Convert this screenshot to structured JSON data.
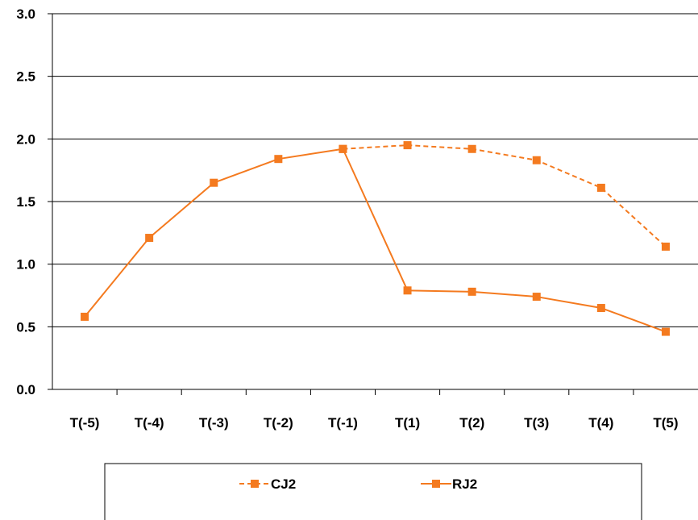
{
  "chart_data": {
    "type": "line",
    "title": "",
    "xlabel": "",
    "ylabel": "",
    "categories": [
      "T(-5)",
      "T(-4)",
      "T(-3)",
      "T(-2)",
      "T(-1)",
      "T(1)",
      "T(2)",
      "T(3)",
      "T(4)",
      "T(5)"
    ],
    "ylim": [
      0,
      3.0
    ],
    "yticks": [
      0,
      0.5,
      1.0,
      1.5,
      2.0,
      2.5,
      3.0
    ],
    "ytick_labels": [
      "0.0",
      "0.5",
      "1.0",
      "1.5",
      "2.0",
      "2.5",
      "3.0"
    ],
    "grid": "horizontal",
    "legend": "bottom",
    "series": [
      {
        "name": "CJ2",
        "style": "dashed",
        "marker": "square",
        "color": "#f47a1f",
        "values": [
          null,
          null,
          null,
          null,
          1.92,
          1.95,
          1.92,
          1.83,
          1.61,
          1.14
        ]
      },
      {
        "name": "RJ2",
        "style": "solid",
        "marker": "square",
        "color": "#f47a1f",
        "values": [
          0.58,
          1.21,
          1.65,
          1.84,
          1.92,
          0.79,
          0.78,
          0.74,
          0.65,
          0.46
        ]
      }
    ]
  }
}
